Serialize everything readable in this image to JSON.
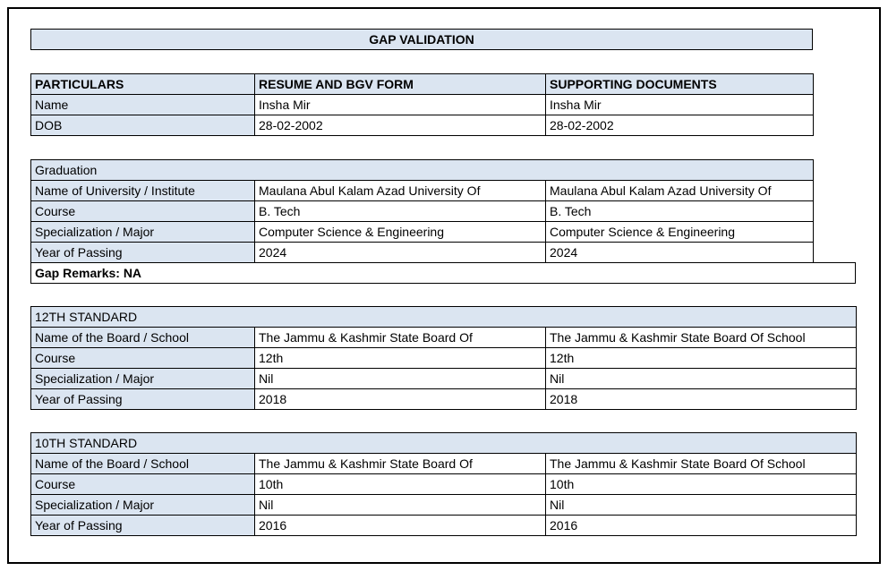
{
  "title": "GAP VALIDATION",
  "colors": {
    "header_bg": "#dbe5f1",
    "border": "#000000"
  },
  "particulars": {
    "headers": [
      "PARTICULARS",
      "RESUME AND BGV FORM",
      "SUPPORTING DOCUMENTS"
    ],
    "rows": [
      [
        "Name",
        "Insha Mir",
        "Insha Mir"
      ],
      [
        "DOB",
        "28-02-2002",
        "28-02-2002"
      ]
    ]
  },
  "sections": [
    {
      "title": "Graduation",
      "wide": false,
      "rows": [
        [
          "Name of University / Institute",
          "Maulana Abul Kalam Azad University Of",
          "Maulana Abul Kalam Azad University Of"
        ],
        [
          "Course",
          "B. Tech",
          "B. Tech"
        ],
        [
          "Specialization / Major",
          "Computer Science & Engineering",
          "Computer Science & Engineering"
        ],
        [
          "Year of Passing",
          "2024",
          "2024"
        ]
      ],
      "remarks": "Gap Remarks: NA"
    },
    {
      "title": "12TH STANDARD",
      "wide": true,
      "rows": [
        [
          "Name of the Board / School",
          "The Jammu & Kashmir State Board Of",
          "The Jammu & Kashmir State Board Of School"
        ],
        [
          "Course",
          "12th",
          "12th"
        ],
        [
          "Specialization / Major",
          "Nil",
          "Nil"
        ],
        [
          "Year of Passing",
          "2018",
          "2018"
        ]
      ],
      "remarks": null
    },
    {
      "title": "10TH STANDARD",
      "wide": true,
      "rows": [
        [
          "Name of the Board / School",
          "The Jammu & Kashmir State Board Of",
          "The Jammu & Kashmir State Board Of School"
        ],
        [
          "Course",
          "10th",
          "10th"
        ],
        [
          "Specialization / Major",
          "Nil",
          "Nil"
        ],
        [
          "Year of Passing",
          "2016",
          "2016"
        ]
      ],
      "remarks": null
    }
  ]
}
